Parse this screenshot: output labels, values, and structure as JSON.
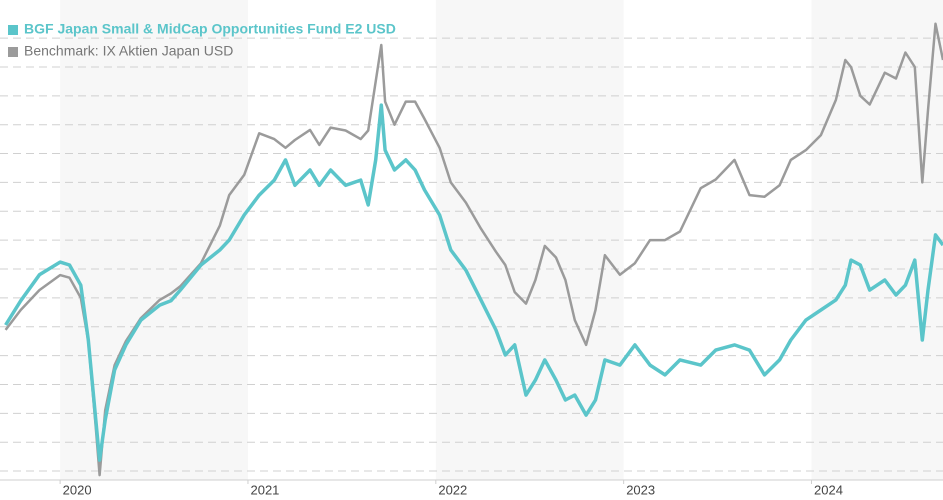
{
  "chart_data": {
    "type": "line",
    "x": [
      2019.71,
      2019.79,
      2019.89,
      2020.0,
      2020.05,
      2020.11,
      2020.15,
      2020.19,
      2020.21,
      2020.24,
      2020.29,
      2020.35,
      2020.43,
      2020.53,
      2020.59,
      2020.64,
      2020.75,
      2020.85,
      2020.9,
      2020.98,
      2021.06,
      2021.14,
      2021.2,
      2021.25,
      2021.33,
      2021.38,
      2021.44,
      2021.52,
      2021.6,
      2021.64,
      2021.68,
      2021.71,
      2021.73,
      2021.78,
      2021.84,
      2021.89,
      2021.94,
      2022.02,
      2022.08,
      2022.16,
      2022.24,
      2022.32,
      2022.37,
      2022.42,
      2022.48,
      2022.53,
      2022.58,
      2022.64,
      2022.69,
      2022.74,
      2022.8,
      2022.85,
      2022.9,
      2022.98,
      2023.06,
      2023.14,
      2023.22,
      2023.3,
      2023.41,
      2023.49,
      2023.59,
      2023.67,
      2023.75,
      2023.83,
      2023.89,
      2023.97,
      2024.05,
      2024.13,
      2024.18,
      2024.21,
      2024.26,
      2024.31,
      2024.39,
      2024.45,
      2024.5,
      2024.55,
      2024.59,
      2024.62,
      2024.66,
      2024.7
    ],
    "series": [
      {
        "name": "Benchmark: IX Aktien Japan USD",
        "color": "#9b9b9b",
        "values": [
          48.9,
          55.8,
          62.7,
          67.9,
          67,
          60,
          45,
          15,
          -1.4,
          21.1,
          36.7,
          45,
          53,
          59.3,
          61.5,
          64,
          72,
          85,
          95.6,
          102.6,
          117,
          115,
          112,
          114.7,
          118.2,
          113,
          119,
          118,
          115,
          118,
          135,
          147.6,
          128,
          120,
          128,
          128,
          122,
          112,
          100,
          93,
          84,
          76,
          71.4,
          62,
          58,
          66.2,
          78,
          74,
          66.2,
          52.3,
          43.7,
          55.8,
          74.8,
          68,
          72,
          80,
          80,
          83,
          98,
          101,
          107.8,
          95.6,
          95,
          99,
          107.8,
          111.2,
          116.4,
          128.6,
          142.4,
          140,
          130,
          127,
          138,
          136,
          145,
          140,
          100,
          125,
          155,
          142.4
        ]
      },
      {
        "name": "BGF Japan Small & MidCap Opportunities Fund E2 USD",
        "color": "#5bc5ca",
        "values": [
          50.6,
          59,
          68,
          72.4,
          71.4,
          64.4,
          45.4,
          17.7,
          3.8,
          17.7,
          35,
          43.7,
          52.3,
          57.5,
          59,
          62.7,
          71.4,
          76.6,
          80,
          88.7,
          95.6,
          100.8,
          107.8,
          99,
          104.3,
          99,
          104.3,
          99,
          100.8,
          92.2,
          107.8,
          126.8,
          111.2,
          104.3,
          107.8,
          104.3,
          97.4,
          88.7,
          76.6,
          69.6,
          59.3,
          48.9,
          40.2,
          43.7,
          26.3,
          31.5,
          38.5,
          31.5,
          24.6,
          26.3,
          19.4,
          24.6,
          38.5,
          36.7,
          43.7,
          36.7,
          33.3,
          38.5,
          36.7,
          41.9,
          43.7,
          41.9,
          33.3,
          38.5,
          45.4,
          52.3,
          55.8,
          59.3,
          64.4,
          73.1,
          71.4,
          62.7,
          66.2,
          61,
          64.4,
          73.1,
          45.4,
          62.7,
          81.8,
          78.3
        ]
      }
    ],
    "xlim": [
      2019.68,
      2024.7
    ],
    "xticks": [
      2020,
      2021,
      2022,
      2023,
      2024
    ],
    "ylim": [
      -3.1,
      163.2
    ],
    "yticks": [
      0,
      10,
      20,
      30,
      40,
      50,
      60,
      70,
      80,
      90,
      100,
      110,
      120,
      130,
      140,
      150
    ],
    "grid": true
  }
}
